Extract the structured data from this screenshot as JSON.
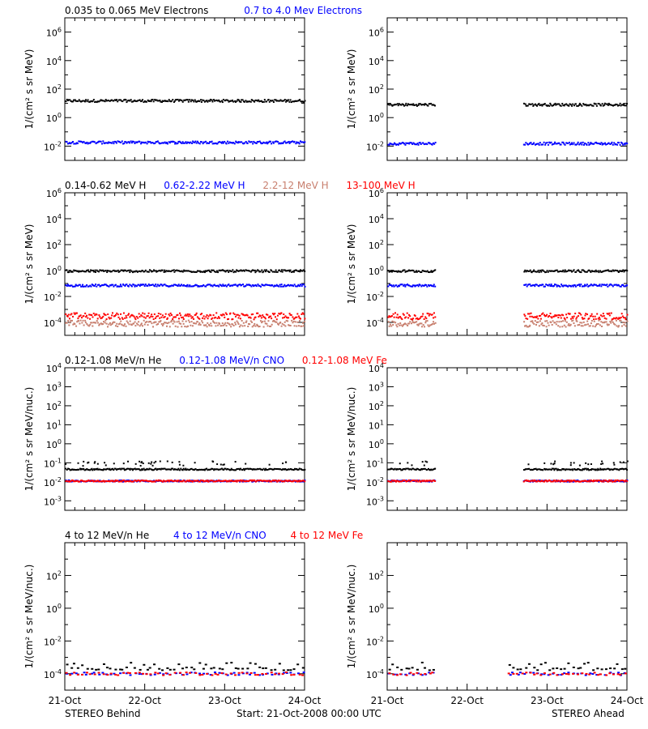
{
  "figure": {
    "footer_left": "STEREO Behind",
    "footer_center": "Start: 21-Oct-2008 00:00 UTC",
    "footer_right": "STEREO Ahead",
    "x_tick_labels": [
      "21-Oct",
      "22-Oct",
      "23-Oct",
      "24-Oct"
    ]
  },
  "colors": {
    "black": "#000000",
    "blue": "#0000ff",
    "brown": "#c87f6e",
    "red": "#ff0000"
  },
  "panels": {
    "electrons": {
      "legend": [
        {
          "label": "0.035 to 0.065 MeV Electrons",
          "color": "#000000"
        },
        {
          "label": "0.7 to 4.0 Mev Electrons",
          "color": "#0000ff"
        }
      ],
      "ylabel": "1/(cm² s sr MeV)"
    },
    "protons": {
      "legend": [
        {
          "label": "0.14-0.62 MeV H",
          "color": "#000000"
        },
        {
          "label": "0.62-2.22 MeV H",
          "color": "#0000ff"
        },
        {
          "label": "2.2-12 MeV H",
          "color": "#c87f6e"
        },
        {
          "label": "13-100 MeV H",
          "color": "#ff0000"
        }
      ],
      "ylabel": "1/(cm² s sr MeV)"
    },
    "heavy_low": {
      "legend": [
        {
          "label": "0.12-1.08 MeV/n He",
          "color": "#000000"
        },
        {
          "label": "0.12-1.08 MeV/n CNO",
          "color": "#0000ff"
        },
        {
          "label": "0.12-1.08 MeV Fe",
          "color": "#ff0000"
        }
      ],
      "ylabel": "1/(cm² s sr MeV/nuc.)"
    },
    "heavy_high": {
      "legend": [
        {
          "label": "4 to 12 MeV/n He",
          "color": "#000000"
        },
        {
          "label": "4 to 12 MeV/n CNO",
          "color": "#0000ff"
        },
        {
          "label": "4 to 12 MeV Fe",
          "color": "#ff0000"
        }
      ],
      "ylabel": "1/(cm² s sr MeV/nuc.)"
    }
  },
  "chart_data": [
    {
      "type": "scatter",
      "spacecraft": "STEREO Behind",
      "panel": "electrons",
      "xlabel": "",
      "ylabel": "1/(cm² s sr MeV)",
      "x_range_days": [
        0,
        3
      ],
      "ylog": true,
      "ylim_exp": [
        -3,
        7
      ],
      "y_tick_exponents": [
        -2,
        0,
        2,
        4,
        6
      ],
      "data_gaps_days": [],
      "series": [
        {
          "name": "0.035 to 0.065 MeV Electrons",
          "color": "#000000",
          "typical_value": 15
        },
        {
          "name": "0.7 to 4.0 Mev Electrons",
          "color": "#0000ff",
          "typical_value": 0.018
        }
      ]
    },
    {
      "type": "scatter",
      "spacecraft": "STEREO Ahead",
      "panel": "electrons",
      "xlabel": "",
      "ylabel": "1/(cm² s sr MeV)",
      "x_range_days": [
        0,
        3
      ],
      "ylog": true,
      "ylim_exp": [
        -3,
        7
      ],
      "y_tick_exponents": [
        -2,
        0,
        2,
        4,
        6
      ],
      "data_gaps_days": [
        [
          0.6,
          1.7
        ]
      ],
      "series": [
        {
          "name": "0.035 to 0.065 MeV Electrons",
          "color": "#000000",
          "typical_value": 8
        },
        {
          "name": "0.7 to 4.0 Mev Electrons",
          "color": "#0000ff",
          "typical_value": 0.015
        }
      ]
    },
    {
      "type": "scatter",
      "spacecraft": "STEREO Behind",
      "panel": "protons",
      "xlabel": "",
      "ylabel": "1/(cm² s sr MeV)",
      "x_range_days": [
        0,
        3
      ],
      "ylog": true,
      "ylim_exp": [
        -5,
        6
      ],
      "y_tick_exponents": [
        -4,
        -2,
        0,
        2,
        4,
        6
      ],
      "data_gaps_days": [],
      "series": [
        {
          "name": "0.14-0.62 MeV H",
          "color": "#000000",
          "typical_value": 0.9
        },
        {
          "name": "0.62-2.22 MeV H",
          "color": "#0000ff",
          "typical_value": 0.07
        },
        {
          "name": "2.2-12 MeV H",
          "color": "#c87f6e",
          "typical_value": 8e-05
        },
        {
          "name": "13-100 MeV H",
          "color": "#ff0000",
          "typical_value": 0.0003
        }
      ]
    },
    {
      "type": "scatter",
      "spacecraft": "STEREO Ahead",
      "panel": "protons",
      "xlabel": "",
      "ylabel": "1/(cm² s sr MeV)",
      "x_range_days": [
        0,
        3
      ],
      "ylog": true,
      "ylim_exp": [
        -5,
        6
      ],
      "y_tick_exponents": [
        -4,
        -2,
        0,
        2,
        4,
        6
      ],
      "data_gaps_days": [
        [
          0.6,
          1.7
        ]
      ],
      "series": [
        {
          "name": "0.14-0.62 MeV H",
          "color": "#000000",
          "typical_value": 0.9
        },
        {
          "name": "0.62-2.22 MeV H",
          "color": "#0000ff",
          "typical_value": 0.07
        },
        {
          "name": "2.2-12 MeV H",
          "color": "#c87f6e",
          "typical_value": 8e-05
        },
        {
          "name": "13-100 MeV H",
          "color": "#ff0000",
          "typical_value": 0.0003
        }
      ]
    },
    {
      "type": "scatter",
      "spacecraft": "STEREO Behind",
      "panel": "heavy_low",
      "xlabel": "",
      "ylabel": "1/(cm² s sr MeV/nuc.)",
      "x_range_days": [
        0,
        3
      ],
      "ylog": true,
      "ylim_exp": [
        -3.5,
        4
      ],
      "y_tick_exponents": [
        -3,
        -2,
        -1,
        0,
        1,
        2,
        3,
        4
      ],
      "data_gaps_days": [],
      "series": [
        {
          "name": "0.12-1.08 MeV/n He",
          "color": "#000000",
          "typical_value": 0.045
        },
        {
          "name": "0.12-1.08 MeV/n CNO",
          "color": "#0000ff",
          "typical_value": 0.011
        },
        {
          "name": "0.12-1.08 MeV Fe",
          "color": "#ff0000",
          "typical_value": 0.011
        }
      ]
    },
    {
      "type": "scatter",
      "spacecraft": "STEREO Ahead",
      "panel": "heavy_low",
      "xlabel": "",
      "ylabel": "1/(cm² s sr MeV/nuc.)",
      "x_range_days": [
        0,
        3
      ],
      "ylog": true,
      "ylim_exp": [
        -3.5,
        4
      ],
      "y_tick_exponents": [
        -3,
        -2,
        -1,
        0,
        1,
        2,
        3,
        4
      ],
      "data_gaps_days": [
        [
          0.6,
          1.7
        ]
      ],
      "series": [
        {
          "name": "0.12-1.08 MeV/n He",
          "color": "#000000",
          "typical_value": 0.045
        },
        {
          "name": "0.12-1.08 MeV/n CNO",
          "color": "#0000ff",
          "typical_value": 0.011
        },
        {
          "name": "0.12-1.08 MeV Fe",
          "color": "#ff0000",
          "typical_value": 0.011
        }
      ]
    },
    {
      "type": "scatter",
      "spacecraft": "STEREO Behind",
      "panel": "heavy_high",
      "xlabel": "",
      "ylabel": "1/(cm² s sr MeV/nuc.)",
      "x_range_days": [
        0,
        3
      ],
      "ylog": true,
      "ylim_exp": [
        -5,
        4
      ],
      "y_tick_exponents": [
        -4,
        -2,
        0,
        2
      ],
      "data_gaps_days": [],
      "series": [
        {
          "name": "4 to 12 MeV/n He",
          "color": "#000000",
          "typical_value": 0.0002
        },
        {
          "name": "4 to 12 MeV/n CNO",
          "color": "#0000ff",
          "typical_value": 0.0001
        },
        {
          "name": "4 to 12 MeV Fe",
          "color": "#ff0000",
          "typical_value": 0.0001
        }
      ]
    },
    {
      "type": "scatter",
      "spacecraft": "STEREO Ahead",
      "panel": "heavy_high",
      "xlabel": "",
      "ylabel": "1/(cm² s sr MeV/nuc.)",
      "x_range_days": [
        0,
        3
      ],
      "ylog": true,
      "ylim_exp": [
        -5,
        4
      ],
      "y_tick_exponents": [
        -4,
        -2,
        0,
        2
      ],
      "data_gaps_days": [
        [
          0.6,
          1.5
        ]
      ],
      "series": [
        {
          "name": "4 to 12 MeV/n He",
          "color": "#000000",
          "typical_value": 0.0002
        },
        {
          "name": "4 to 12 MeV/n CNO",
          "color": "#0000ff",
          "typical_value": 0.0001
        },
        {
          "name": "4 to 12 MeV Fe",
          "color": "#ff0000",
          "typical_value": 0.0001
        }
      ]
    }
  ]
}
